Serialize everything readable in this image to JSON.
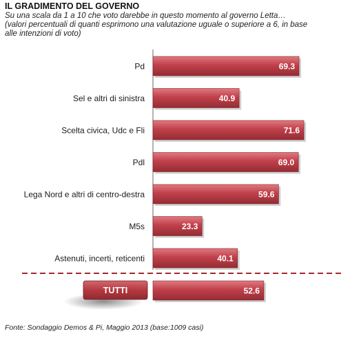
{
  "title": "IL GRADIMENTO DEL GOVERNO",
  "subtitle_lines": [
    "Su una scala da 1 a 10 che voto darebbe in questo momento al governo Letta…",
    "(valori percentuali di quanti esprimono una valutazione uguale o superiore a 6, in base",
    "alle intenzioni di voto)"
  ],
  "footnote": "Fonte: Sondaggio Demos & Pi, Maggio 2013 (base:1009 casi)",
  "colors": {
    "bar": "#c0404a",
    "bar_dark": "#8e2a31",
    "divider": "#a8242c",
    "total_box": "#b73a40"
  },
  "chart_data": {
    "type": "bar",
    "orientation": "horizontal",
    "categories": [
      "Pd",
      "Sel e altri di sinistra",
      "Scelta civica, Udc e Fli",
      "Pdl",
      "Lega Nord e altri di centro-destra",
      "M5s",
      "Astenuti, incerti, reticenti"
    ],
    "values": [
      69.3,
      40.9,
      71.6,
      69.0,
      59.6,
      23.3,
      40.1
    ],
    "total": {
      "label": "TUTTI",
      "value": 52.6
    },
    "xlim": [
      0,
      100
    ],
    "data_labels": [
      "69.3",
      "40.9",
      "71.6",
      "69.0",
      "59.6",
      "23.3",
      "40.1"
    ],
    "total_data_label": "52.6"
  }
}
